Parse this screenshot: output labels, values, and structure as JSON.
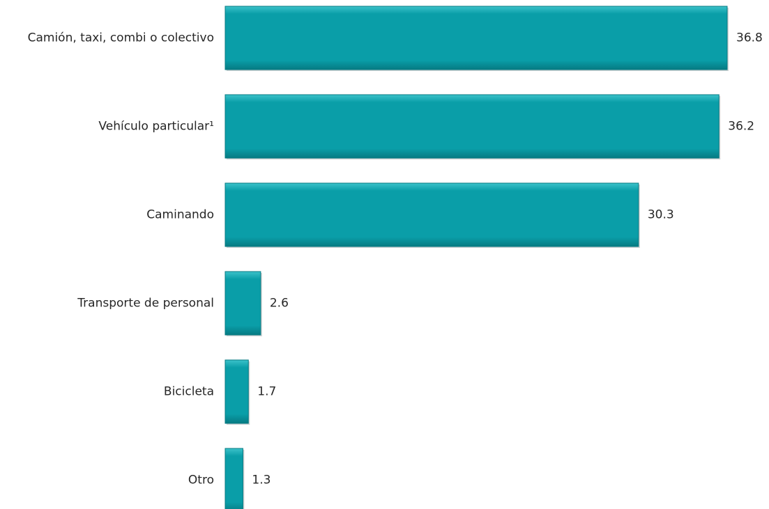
{
  "chart_data": {
    "type": "bar",
    "orientation": "horizontal",
    "categories": [
      "Camión, taxi, combi o colectivo",
      "Vehículo particular¹",
      "Caminando",
      "Transporte de personal",
      "Bicicleta",
      "Otro"
    ],
    "values": [
      36.8,
      36.2,
      30.3,
      2.6,
      1.7,
      1.3
    ],
    "value_labels": [
      "36.8",
      "36.2",
      "30.3",
      "2.6",
      "1.7",
      "1.3"
    ],
    "title": "",
    "xlabel": "",
    "ylabel": "",
    "xlim": [
      0,
      36.8
    ],
    "grid": false,
    "legend": "none",
    "colors": {
      "bar": "#0a9ea8",
      "bar_light": "#3cc2ca",
      "bar_dark": "#067a82",
      "text": "#262626"
    }
  }
}
